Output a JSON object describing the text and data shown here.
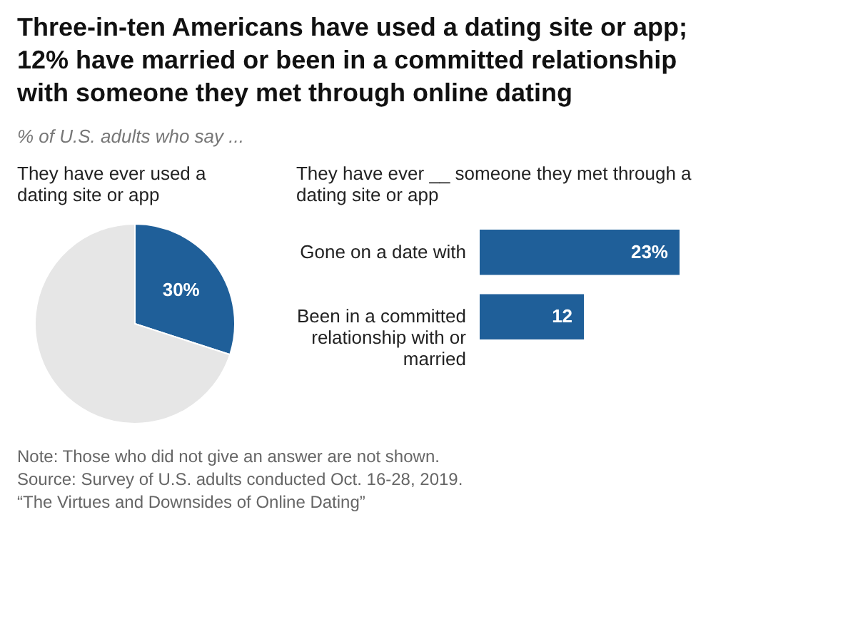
{
  "chart_data": [
    {
      "type": "other",
      "title": "Three-in-ten Americans have used a dating site or app; 12% have married or been in a committed relationship with someone they met through online dating",
      "subtitle": "% of U.S. adults who say ...",
      "annotations": [
        "Note: Those who did not give an answer are not shown.",
        "Source: Survey of U.S. adults conducted Oct. 16-28, 2019.",
        "“The Virtues and Downsides of Online Dating”"
      ]
    },
    {
      "type": "pie",
      "title": "They have ever used a dating site or app",
      "categories": [
        null,
        null
      ],
      "values": [
        30,
        70
      ],
      "colors": [
        "#1f5f99",
        "#e6e6e6"
      ],
      "value_labels": [
        "30%",
        null
      ]
    },
    {
      "type": "bar",
      "orientation": "horizontal",
      "title": "They have ever __ someone they met through a dating site or app",
      "categories": [
        "Gone on a date with",
        "Been in a committed relationship with or married"
      ],
      "values": [
        23,
        12
      ],
      "color": "#1f5f99",
      "value_labels": [
        "23%",
        "12"
      ]
    }
  ]
}
